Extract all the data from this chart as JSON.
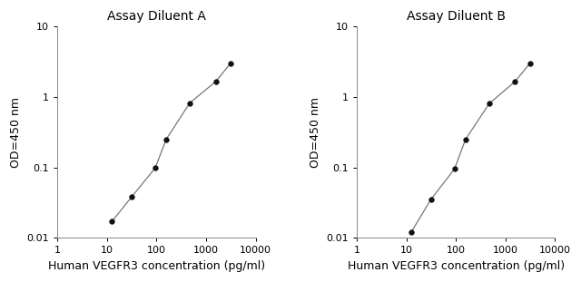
{
  "panel_A": {
    "title": "Assay Diluent A",
    "x": [
      12.5,
      31.25,
      93.75,
      156.25,
      468.75,
      1562.5,
      3125
    ],
    "y": [
      0.017,
      0.038,
      0.098,
      0.25,
      0.82,
      1.65,
      3.0
    ],
    "xlabel": "Human VEGFR3 concentration (pg/ml)",
    "ylabel": "OD=450 nm",
    "xlim": [
      1,
      10000
    ],
    "ylim": [
      0.01,
      10
    ],
    "xticks": [
      1,
      10,
      100,
      1000,
      10000
    ],
    "yticks": [
      0.01,
      0.1,
      1,
      10
    ]
  },
  "panel_B": {
    "title": "Assay Diluent B",
    "x": [
      12.5,
      31.25,
      93.75,
      156.25,
      468.75,
      1562.5,
      3125
    ],
    "y": [
      0.012,
      0.035,
      0.095,
      0.25,
      0.8,
      1.65,
      3.0
    ],
    "xlabel": "Human VEGFR3 concentration (pg/ml)",
    "ylabel": "OD=450 nm",
    "xlim": [
      1,
      10000
    ],
    "ylim": [
      0.01,
      10
    ],
    "xticks": [
      1,
      10,
      100,
      1000,
      10000
    ],
    "yticks": [
      0.01,
      0.1,
      1,
      10
    ]
  },
  "line_color": "#777777",
  "marker_color": "#111111",
  "marker_size": 4,
  "tick_fontsize": 8,
  "label_fontsize": 9,
  "title_fontsize": 10,
  "bg_color": "#ffffff"
}
